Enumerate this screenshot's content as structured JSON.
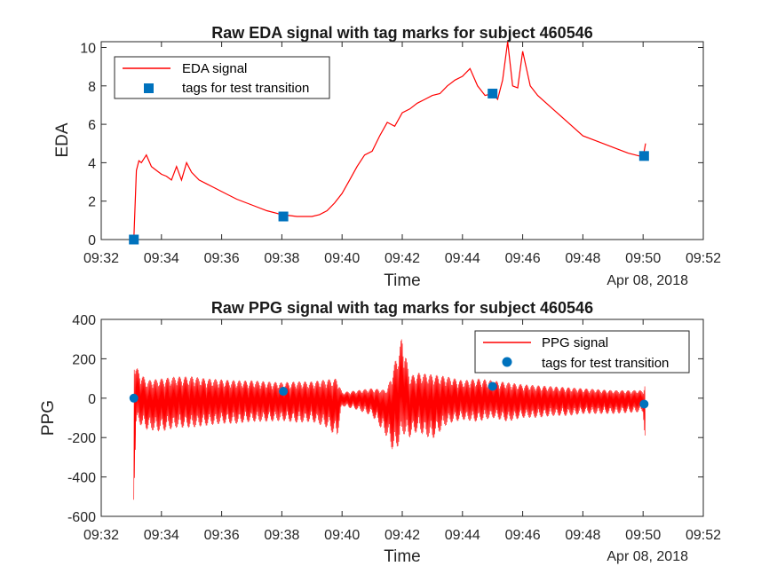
{
  "chart_data": [
    {
      "type": "line",
      "title": "Raw EDA signal with tag marks for subject 460546",
      "xlabel": "Time",
      "ylabel": "EDA",
      "date_label": "Apr 08, 2018",
      "x_ticks": [
        "09:32",
        "09:34",
        "09:36",
        "09:38",
        "09:40",
        "09:42",
        "09:44",
        "09:46",
        "09:48",
        "09:50",
        "09:52"
      ],
      "xlim": [
        "09:32",
        "09:52"
      ],
      "ylim": [
        0,
        10.3
      ],
      "y_ticks": [
        0,
        2,
        4,
        6,
        8,
        10
      ],
      "legend_position": "top-left",
      "line_color": "#ff0000",
      "tag_color": "#0072bd",
      "series": [
        {
          "name": "EDA signal",
          "x": [
            "09:33:05",
            "09:33:10",
            "09:33:15",
            "09:33:20",
            "09:33:30",
            "09:33:40",
            "09:33:50",
            "09:34:00",
            "09:34:10",
            "09:34:20",
            "09:34:30",
            "09:34:40",
            "09:34:50",
            "09:35:00",
            "09:35:15",
            "09:35:30",
            "09:35:45",
            "09:36:00",
            "09:36:30",
            "09:37:00",
            "09:37:30",
            "09:38:00",
            "09:38:30",
            "09:39:00",
            "09:39:15",
            "09:39:30",
            "09:39:45",
            "09:40:00",
            "09:40:15",
            "09:40:30",
            "09:40:45",
            "09:41:00",
            "09:41:15",
            "09:41:30",
            "09:41:45",
            "09:42:00",
            "09:42:15",
            "09:42:30",
            "09:42:45",
            "09:43:00",
            "09:43:15",
            "09:43:30",
            "09:43:45",
            "09:44:00",
            "09:44:15",
            "09:44:30",
            "09:44:45",
            "09:45:00",
            "09:45:10",
            "09:45:20",
            "09:45:30",
            "09:45:40",
            "09:45:50",
            "09:46:00",
            "09:46:15",
            "09:46:30",
            "09:47:00",
            "09:47:30",
            "09:48:00",
            "09:48:30",
            "09:49:00",
            "09:49:30",
            "09:50:00",
            "09:50:05"
          ],
          "y": [
            0.0,
            3.6,
            4.1,
            4.0,
            4.4,
            3.8,
            3.6,
            3.4,
            3.3,
            3.1,
            3.8,
            3.1,
            4.0,
            3.5,
            3.1,
            2.9,
            2.7,
            2.5,
            2.1,
            1.8,
            1.5,
            1.3,
            1.2,
            1.2,
            1.3,
            1.5,
            1.9,
            2.4,
            3.1,
            3.8,
            4.4,
            4.6,
            5.4,
            6.1,
            5.9,
            6.6,
            6.8,
            7.1,
            7.3,
            7.5,
            7.6,
            8.0,
            8.3,
            8.5,
            8.9,
            8.0,
            7.5,
            7.6,
            7.3,
            8.3,
            10.3,
            8.0,
            7.9,
            9.8,
            8.0,
            7.5,
            6.8,
            6.1,
            5.4,
            5.1,
            4.8,
            4.5,
            4.3,
            5.0
          ]
        },
        {
          "name": "tags for test transition",
          "x": [
            "09:33:05",
            "09:38:03",
            "09:45:00",
            "09:50:02"
          ],
          "y": [
            0.0,
            1.2,
            7.6,
            4.35
          ]
        }
      ]
    },
    {
      "type": "line",
      "title": "Raw PPG signal with tag marks for subject 460546",
      "xlabel": "Time",
      "ylabel": "PPG",
      "date_label": "Apr 08, 2018",
      "x_ticks": [
        "09:32",
        "09:34",
        "09:36",
        "09:38",
        "09:40",
        "09:42",
        "09:44",
        "09:46",
        "09:48",
        "09:50",
        "09:52"
      ],
      "xlim": [
        "09:32",
        "09:52"
      ],
      "ylim": [
        -600,
        400
      ],
      "y_ticks": [
        -600,
        -400,
        -200,
        0,
        200,
        400
      ],
      "legend_position": "top-right",
      "line_color": "#ff0000",
      "tag_color": "#0072bd",
      "series": [
        {
          "name": "PPG signal",
          "x": [
            "09:33:05",
            "09:33:10",
            "09:33:30",
            "09:34:00",
            "09:34:30",
            "09:35:00",
            "09:35:30",
            "09:36:00",
            "09:36:30",
            "09:37:00",
            "09:37:30",
            "09:38:00",
            "09:38:30",
            "09:39:00",
            "09:39:30",
            "09:39:50",
            "09:40:00",
            "09:40:30",
            "09:41:00",
            "09:41:30",
            "09:41:45",
            "09:42:00",
            "09:42:15",
            "09:42:30",
            "09:43:00",
            "09:43:30",
            "09:44:00",
            "09:44:30",
            "09:45:00",
            "09:45:30",
            "09:46:00",
            "09:46:30",
            "09:47:00",
            "09:47:30",
            "09:48:00",
            "09:48:30",
            "09:49:00",
            "09:49:30",
            "09:50:00",
            "09:50:05"
          ],
          "upper": [
            230,
            160,
            90,
            100,
            110,
            110,
            100,
            95,
            90,
            90,
            85,
            80,
            85,
            85,
            95,
            100,
            30,
            40,
            50,
            40,
            180,
            320,
            110,
            130,
            120,
            110,
            90,
            100,
            90,
            80,
            70,
            65,
            60,
            55,
            50,
            45,
            40,
            40,
            40,
            80
          ],
          "lower": [
            -540,
            -120,
            -160,
            -170,
            -150,
            -150,
            -140,
            -130,
            -130,
            -120,
            -120,
            -115,
            -125,
            -120,
            -150,
            -200,
            -40,
            -60,
            -90,
            -200,
            -290,
            -180,
            -200,
            -170,
            -210,
            -130,
            -110,
            -120,
            -100,
            -120,
            -100,
            -100,
            -90,
            -90,
            -80,
            -80,
            -80,
            -75,
            -70,
            -280
          ]
        },
        {
          "name": "tags for test transition",
          "x": [
            "09:33:05",
            "09:38:03",
            "09:45:00",
            "09:50:02"
          ],
          "y": [
            0,
            35,
            60,
            -30
          ]
        }
      ]
    }
  ]
}
